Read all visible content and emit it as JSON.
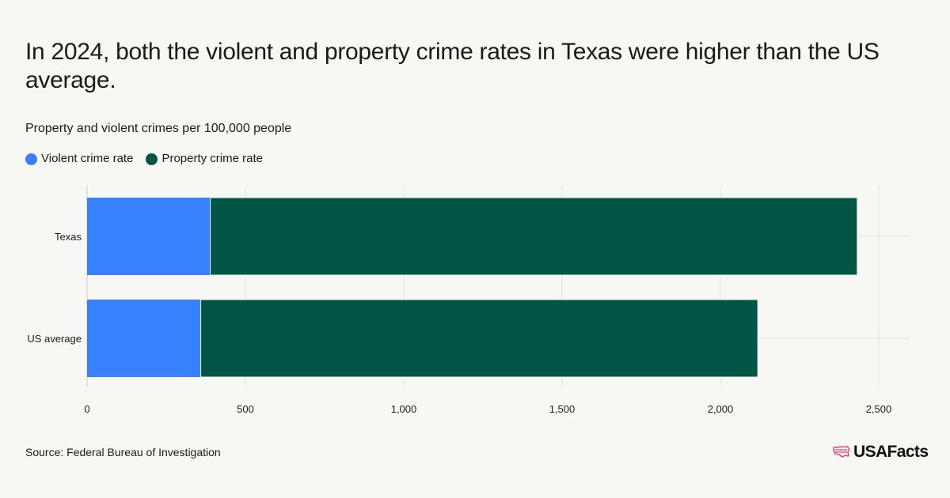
{
  "title": "In 2024, both the violent and property crime rates in Texas were higher than the US average.",
  "subtitle": "Property and violent crimes per 100,000 people",
  "source": "Source: Federal Bureau of Investigation",
  "brand": "USAFacts",
  "colors": {
    "violent": "#3780ff",
    "property": "#005545",
    "grid": "#e4e4df",
    "background": "#f7f7f3"
  },
  "chart_data": {
    "type": "bar",
    "orientation": "horizontal",
    "stacked": true,
    "categories": [
      "Texas",
      "US average"
    ],
    "series": [
      {
        "name": "Violent crime rate",
        "values": [
          389,
          359
        ]
      },
      {
        "name": "Property crime rate",
        "values": [
          2043,
          1759
        ]
      }
    ],
    "xlim": [
      0,
      2600
    ],
    "xticks": [
      0,
      500,
      1000,
      1500,
      2000,
      2500
    ],
    "xtick_labels": [
      "0",
      "500",
      "1,000",
      "1,500",
      "2,000",
      "2,500"
    ],
    "grid": true,
    "legend_position": "top-left"
  }
}
